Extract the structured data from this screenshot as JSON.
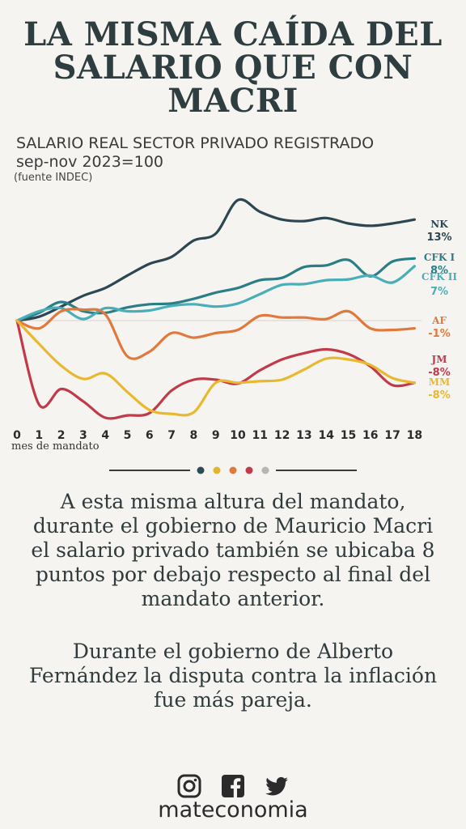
{
  "title_lines": [
    "LA MISMA CAÍDA DEL",
    "SALARIO QUE CON",
    "MACRI"
  ],
  "subtitle1": "SALARIO REAL SECTOR PRIVADO REGISTRADO",
  "subtitle2": "sep-nov 2023=100",
  "source": "(fuente INDEC)",
  "paragraphs": [
    "A esta misma altura del mandato, durante el gobierno de Mauricio Macri el salario privado también se ubicaba 8 puntos por debajo respecto al final del mandato anterior.",
    "Durante el gobierno de Alberto Fernández la disputa contra la inflación fue más pareja."
  ],
  "brand": "mateconomia",
  "social_icons": [
    "instagram-icon",
    "facebook-icon",
    "twitter-icon"
  ],
  "divider_dots": [
    "#2e4a55",
    "#e0b62c",
    "#e07a3c",
    "#c03a4a",
    "#b5b5b5"
  ],
  "chart_data": {
    "type": "line",
    "xlabel": "mes de mandato",
    "ylabel": "",
    "x": [
      0,
      1,
      2,
      3,
      4,
      5,
      6,
      7,
      8,
      9,
      10,
      11,
      12,
      13,
      14,
      15,
      16,
      17,
      18
    ],
    "ylim": [
      -12,
      16
    ],
    "series": [
      {
        "name": "NK",
        "label": "13%",
        "color": "#2c4752",
        "values": [
          0,
          0.5,
          1.8,
          3.2,
          4.2,
          5.8,
          7.3,
          8.2,
          10.3,
          11.2,
          15.5,
          14,
          13,
          12.8,
          13.2,
          12.5,
          12.2,
          12.5,
          13
        ]
      },
      {
        "name": "CFK I",
        "label": "8%",
        "color": "#2a7f86",
        "values": [
          0,
          1,
          2.4,
          1.2,
          1,
          1.7,
          2.1,
          2.2,
          2.8,
          3.6,
          4.2,
          5.2,
          5.5,
          6.9,
          7.1,
          7.8,
          5.7,
          7.6,
          8
        ]
      },
      {
        "name": "CFK II",
        "label": "7%",
        "color": "#4aaeb8",
        "values": [
          0,
          1.2,
          1.6,
          0.2,
          1.6,
          1.2,
          1.3,
          1.9,
          2.1,
          1.8,
          2.2,
          3.4,
          4.6,
          4.7,
          5.2,
          5.3,
          5.8,
          4.9,
          7
        ]
      },
      {
        "name": "AF",
        "label": "-1%",
        "color": "#e07a3c",
        "values": [
          0,
          -1,
          1.2,
          1.4,
          0.8,
          -4.6,
          -4,
          -1.6,
          -2.2,
          -1.6,
          -1.2,
          0.6,
          0.4,
          0.4,
          0.2,
          1.2,
          -1,
          -1.2,
          -1
        ]
      },
      {
        "name": "JM",
        "label": "-8%",
        "color": "#c03a4a",
        "values": [
          0,
          -10.8,
          -8.8,
          -10.4,
          -12.5,
          -12.2,
          -11.9,
          -9,
          -7.6,
          -7.6,
          -8.1,
          -6.4,
          -5,
          -4.2,
          -3.7,
          -4.3,
          -5.9,
          -8.3,
          -8
        ]
      },
      {
        "name": "MM",
        "label": "-8%",
        "color": "#e8b92e",
        "values": [
          0,
          -3,
          -5.8,
          -7.5,
          -6.8,
          -9.2,
          -11.5,
          -12,
          -11.8,
          -8,
          -8,
          -7.8,
          -7.6,
          -6.3,
          -4.9,
          -5,
          -5.7,
          -7.4,
          -8
        ]
      }
    ]
  }
}
